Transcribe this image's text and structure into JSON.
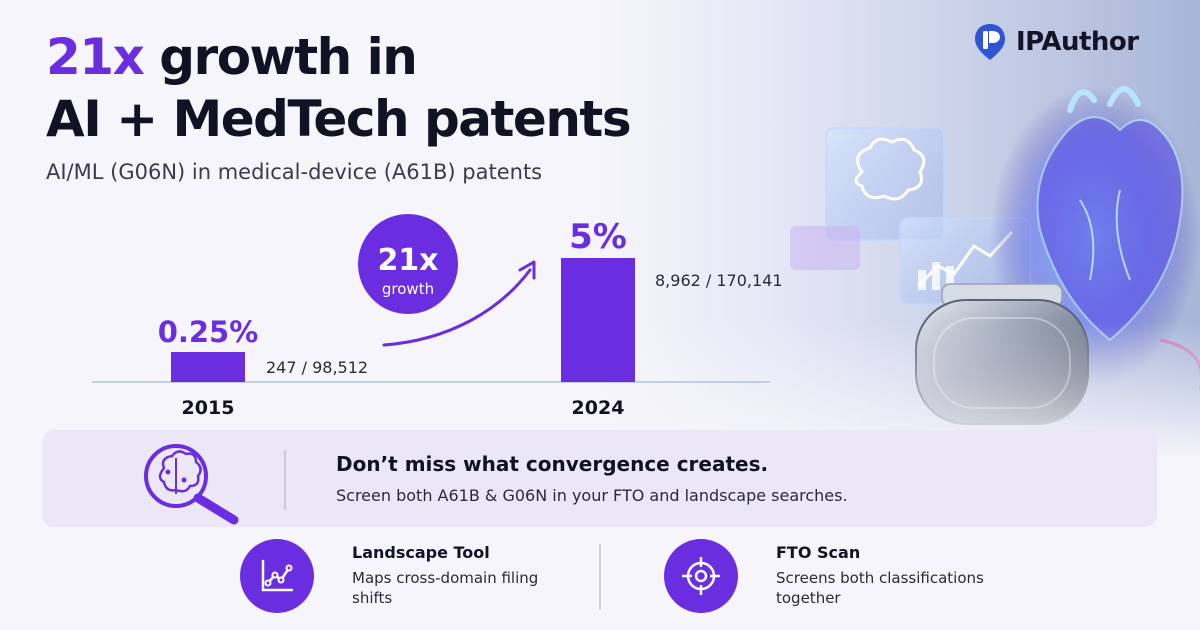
{
  "headline": {
    "accent": "21x",
    "line1_rest": " growth in",
    "line2": "AI + MedTech patents"
  },
  "subtitle": "AI/ML (G06N) in medical-device (A61B) patents",
  "brand": {
    "name": "IPAuthor",
    "logo_icon": "pin-logo-icon"
  },
  "colors": {
    "accent": "#6a2ee0",
    "text": "#121225",
    "banner_bg": "#ebe7f6"
  },
  "chart_data": {
    "type": "bar",
    "categories": [
      "2015",
      "2024"
    ],
    "values": [
      0.25,
      5
    ],
    "value_labels": [
      "0.25%",
      "5%"
    ],
    "count_labels": [
      "247 / 98,512",
      "8,962 / 170,141"
    ],
    "growth_badge": {
      "value": "21x",
      "label": "growth"
    },
    "unit": "%",
    "grid": false,
    "title": "",
    "xlabel": "",
    "ylabel": ""
  },
  "banner": {
    "icon": "brain-magnifier-icon",
    "title": "Don’t miss what convergence creates.",
    "text": "Screen both A61B & G06N in your FTO and landscape searches."
  },
  "features": [
    {
      "icon": "line-chart-icon",
      "title": "Landscape Tool",
      "desc": "Maps cross-domain filing shifts"
    },
    {
      "icon": "crosshair-icon",
      "title": "FTO Scan",
      "desc": "Screens both classifications together"
    }
  ]
}
